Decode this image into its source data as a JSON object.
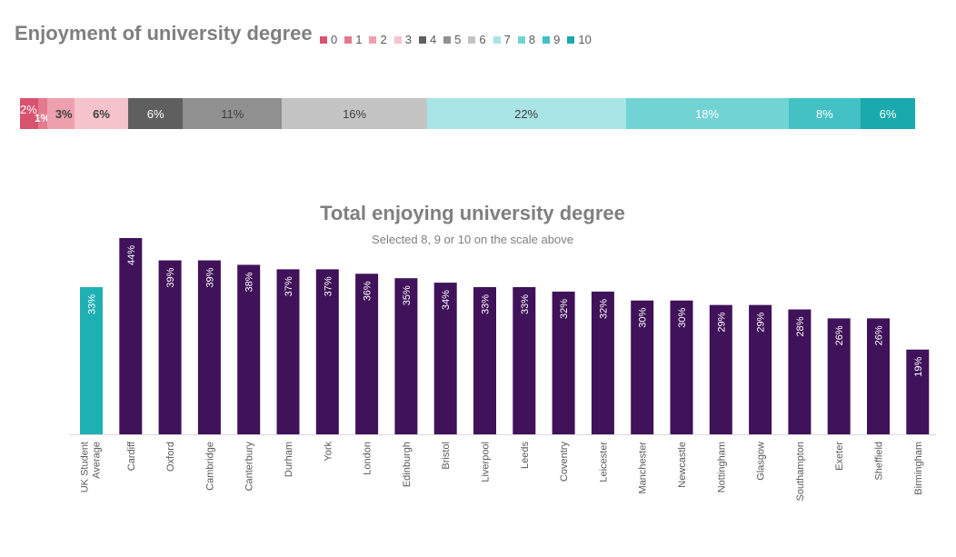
{
  "chart_data": [
    {
      "type": "bar",
      "orientation": "horizontal-stacked",
      "title": "Enjoyment of university degree",
      "legend": [
        "0",
        "1",
        "2",
        "3",
        "4",
        "5",
        "6",
        "7",
        "8",
        "9",
        "10"
      ],
      "colors": [
        "#d9536e",
        "#e37a8e",
        "#eea0ae",
        "#f5c3cb",
        "#5f5f5f",
        "#909090",
        "#c4c4c4",
        "#a9e4e6",
        "#72d3d5",
        "#43c0c4",
        "#1aa9ad"
      ],
      "values": [
        2,
        1,
        3,
        6,
        6,
        11,
        16,
        22,
        18,
        8,
        6
      ],
      "labels": [
        "2%",
        "1%",
        "3%",
        "6%",
        "6%",
        "11%",
        "16%",
        "22%",
        "18%",
        "8%",
        "6%"
      ],
      "legend_position": "top-right"
    },
    {
      "type": "bar",
      "title": "Total enjoying university degree",
      "subtitle": "Selected 8, 9 or 10 on the scale above",
      "categories": [
        "UK Student Average",
        "Cardiff",
        "Oxford",
        "Cambridge",
        "Canterbury",
        "Durham",
        "York",
        "London",
        "Edinburgh",
        "Bristol",
        "Liverpool",
        "Leeds",
        "Coventry",
        "Leicester",
        "Manchester",
        "Newcastle",
        "Nottingham",
        "Glasgow",
        "Southampton",
        "Exeter",
        "Sheffield",
        "Birmingham"
      ],
      "values": [
        33,
        44,
        39,
        39,
        38,
        37,
        37,
        36,
        35,
        34,
        33,
        33,
        32,
        32,
        30,
        30,
        29,
        29,
        28,
        26,
        26,
        19
      ],
      "labels": [
        "33%",
        "44%",
        "39%",
        "39%",
        "38%",
        "37%",
        "37%",
        "36%",
        "35%",
        "34%",
        "33%",
        "33%",
        "32%",
        "32%",
        "30%",
        "30%",
        "29%",
        "29%",
        "28%",
        "26%",
        "26%",
        "19%"
      ],
      "ylim": [
        0,
        44
      ],
      "highlight_color": "#1fb0b4",
      "bar_color": "#3f1259",
      "axis_color": "#d9d9d9",
      "label_color": "#595959"
    }
  ]
}
